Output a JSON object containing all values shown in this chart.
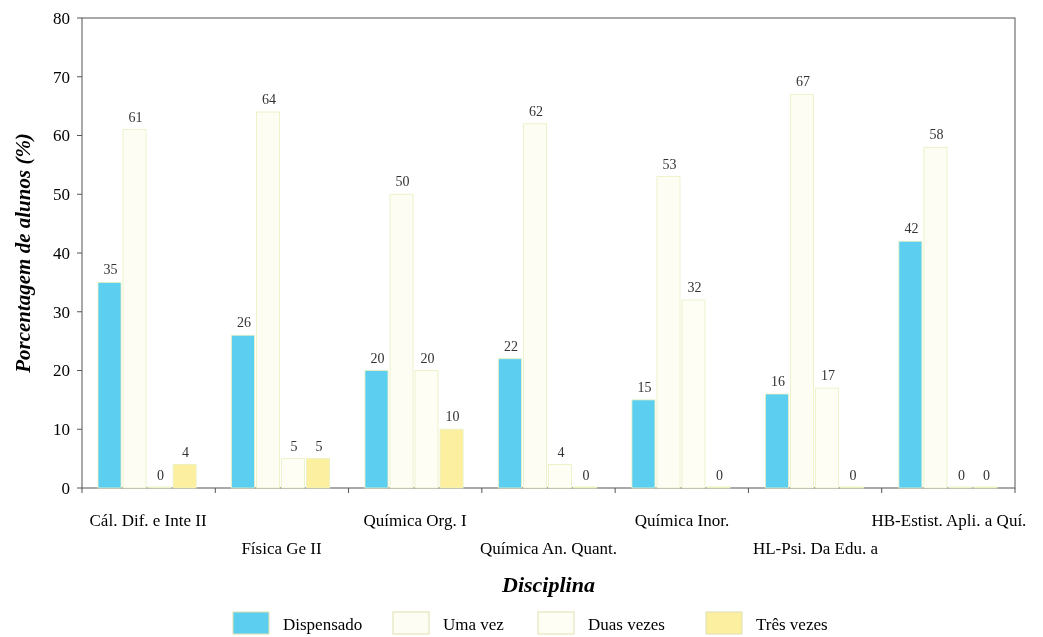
{
  "chart_data": {
    "type": "bar",
    "xlabel": "Disciplina",
    "ylabel": "Porcentagem de alunos (%)",
    "categories": [
      "Cál. Dif. e Inte II",
      "Física Ge II",
      "Química Org. I",
      "Química An. Quant.",
      "Química Inor.",
      "HL-Psi. Da Edu. a",
      "HB-Estist. Apli. a Quí."
    ],
    "series": [
      {
        "name": "Dispensado",
        "color": "#5ccff0",
        "values": [
          35,
          26,
          20,
          22,
          15,
          16,
          42
        ]
      },
      {
        "name": "Uma vez",
        "color": "#fdfdf3",
        "values": [
          61,
          64,
          50,
          62,
          53,
          67,
          58
        ]
      },
      {
        "name": "Duas vezes",
        "color": "#fefef5",
        "values": [
          0,
          5,
          20,
          4,
          32,
          17,
          0
        ]
      },
      {
        "name": "Três vezes",
        "color": "#fcf0a0",
        "values": [
          4,
          5,
          10,
          0,
          0,
          0,
          0
        ]
      }
    ],
    "ylim": [
      0,
      80
    ],
    "yticks": [
      0,
      10,
      20,
      30,
      40,
      50,
      60,
      70,
      80
    ],
    "data_labels": true,
    "legend": "bottom",
    "grid": false
  }
}
